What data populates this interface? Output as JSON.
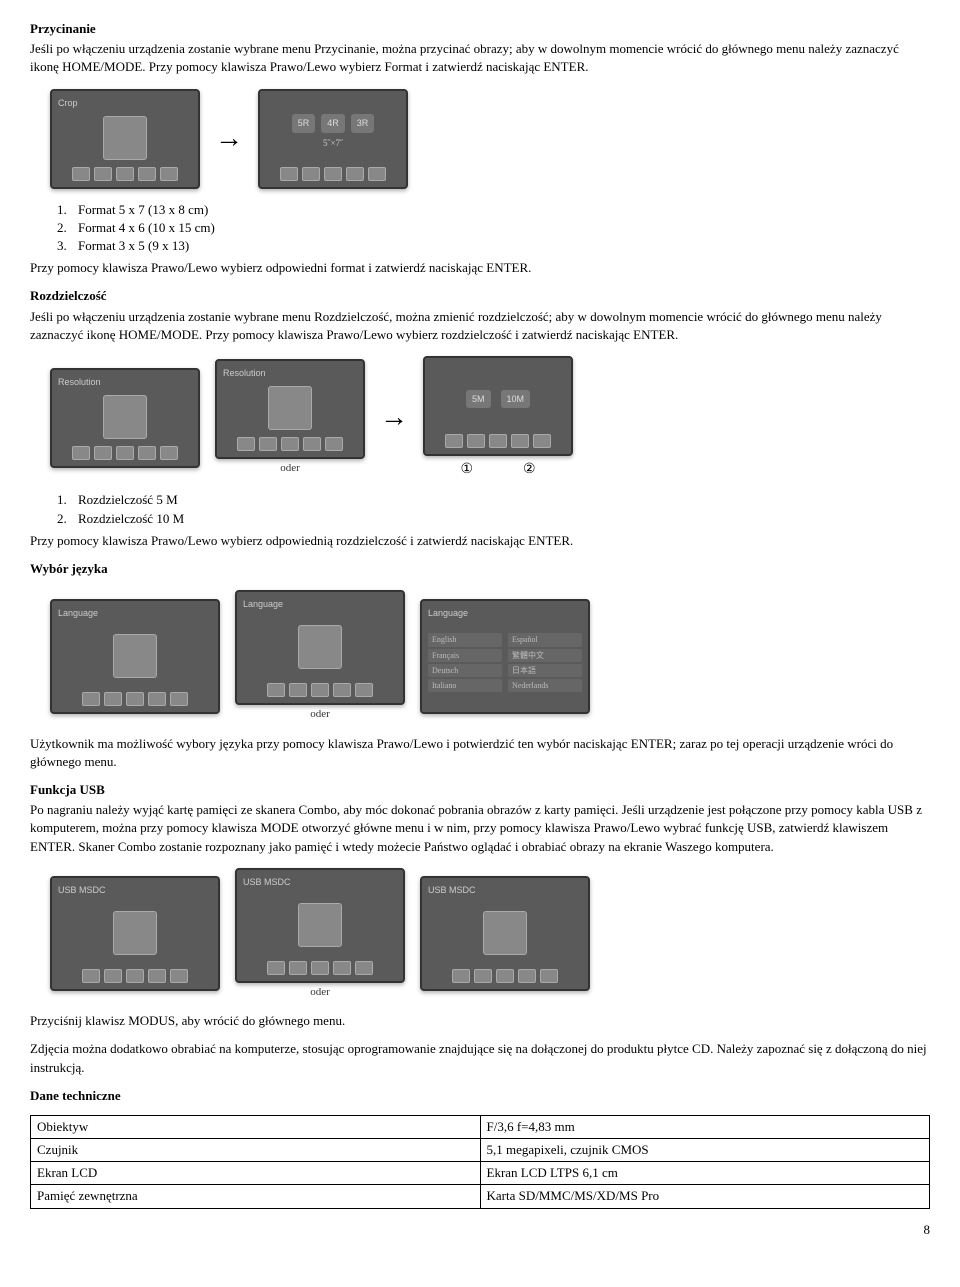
{
  "section1": {
    "title": "Przycinanie",
    "body": "Jeśli po włączeniu urządzenia zostanie wybrane menu Przycinanie, można przycinać obrazy; aby w dowolnym momencie wrócić do głównego menu należy zaznaczyć ikonę HOME/MODE. Przy pomocy klawisza Prawo/Lewo wybierz Format i zatwierdź naciskając ENTER.",
    "screen1_header": "Crop",
    "pills": [
      "5R",
      "4R",
      "3R"
    ],
    "subcaption": "5˝×7˝",
    "list": [
      "Format 5 x 7 (13 x 8 cm)",
      "Format 4 x 6 (10 x 15 cm)",
      "Format 3 x 5 (9 x 13)"
    ],
    "after": "Przy pomocy klawisza Prawo/Lewo wybierz odpowiedni format i zatwierdź naciskając ENTER."
  },
  "section2": {
    "title": "Rozdzielczość",
    "body": "Jeśli po włączeniu urządzenia zostanie wybrane menu Rozdzielczość, można zmienić rozdzielczość; aby w dowolnym momencie wrócić do głównego menu należy zaznaczyć ikonę HOME/MODE. Przy pomocy klawisza Prawo/Lewo wybierz rozdzielczość i zatwierdź naciskając ENTER.",
    "screen_header": "Resolution",
    "oder": "oder",
    "pills": [
      "5M",
      "10M"
    ],
    "circled": [
      "①",
      "②"
    ],
    "list": [
      "Rozdzielczość 5 M",
      "Rozdzielczość 10 M"
    ],
    "after": "Przy pomocy klawisza Prawo/Lewo wybierz odpowiednią rozdzielczość i zatwierdź naciskając ENTER."
  },
  "section3": {
    "title": "Wybór języka",
    "screen_header": "Language",
    "oder": "oder",
    "langs": [
      [
        "English",
        "Español"
      ],
      [
        "Français",
        "繁體中文"
      ],
      [
        "Deutsch",
        "日本語"
      ],
      [
        "Italiano",
        "Nederlands"
      ]
    ],
    "body": "Użytkownik ma możliwość wybory języka przy pomocy klawisza Prawo/Lewo i potwierdzić ten wybór naciskając ENTER; zaraz po tej operacji urządzenie wróci do głównego menu."
  },
  "section4": {
    "title": "Funkcja USB",
    "body": "Po nagraniu należy wyjąć kartę pamięci ze skanera Combo, aby móc dokonać pobrania obrazów z karty pamięci. Jeśli urządzenie jest połączone przy pomocy kabla USB z komputerem, można przy pomocy klawisza MODE otworzyć główne menu i w nim,  przy pomocy klawisza Prawo/Lewo wybrać funkcję USB, zatwierdź klawiszem ENTER. Skaner Combo zostanie rozpoznany jako pamięć i wtedy możecie Państwo oglądać i obrabiać obrazy na ekranie Waszego komputera.",
    "screen_header": "USB MSDC",
    "oder": "oder"
  },
  "after_usb_1": "Przyciśnij klawisz MODUS, aby wrócić do głównego menu.",
  "after_usb_2": "Zdjęcia można dodatkowo obrabiać na komputerze, stosując oprogramowanie znajdujące się na dołączonej do produktu płytce CD. Należy zapoznać się z dołączoną do niej instrukcją.",
  "specs": {
    "title": "Dane techniczne",
    "rows": [
      [
        "Obiektyw",
        "F/3,6 f=4,83 mm"
      ],
      [
        "Czujnik",
        "5,1 megapixeli, czujnik CMOS"
      ],
      [
        "Ekran LCD",
        "Ekran LCD LTPS 6,1 cm"
      ],
      [
        "Pamięć zewnętrzna",
        "Karta SD/MMC/MS/XD/MS Pro"
      ]
    ]
  },
  "page_number": "8"
}
